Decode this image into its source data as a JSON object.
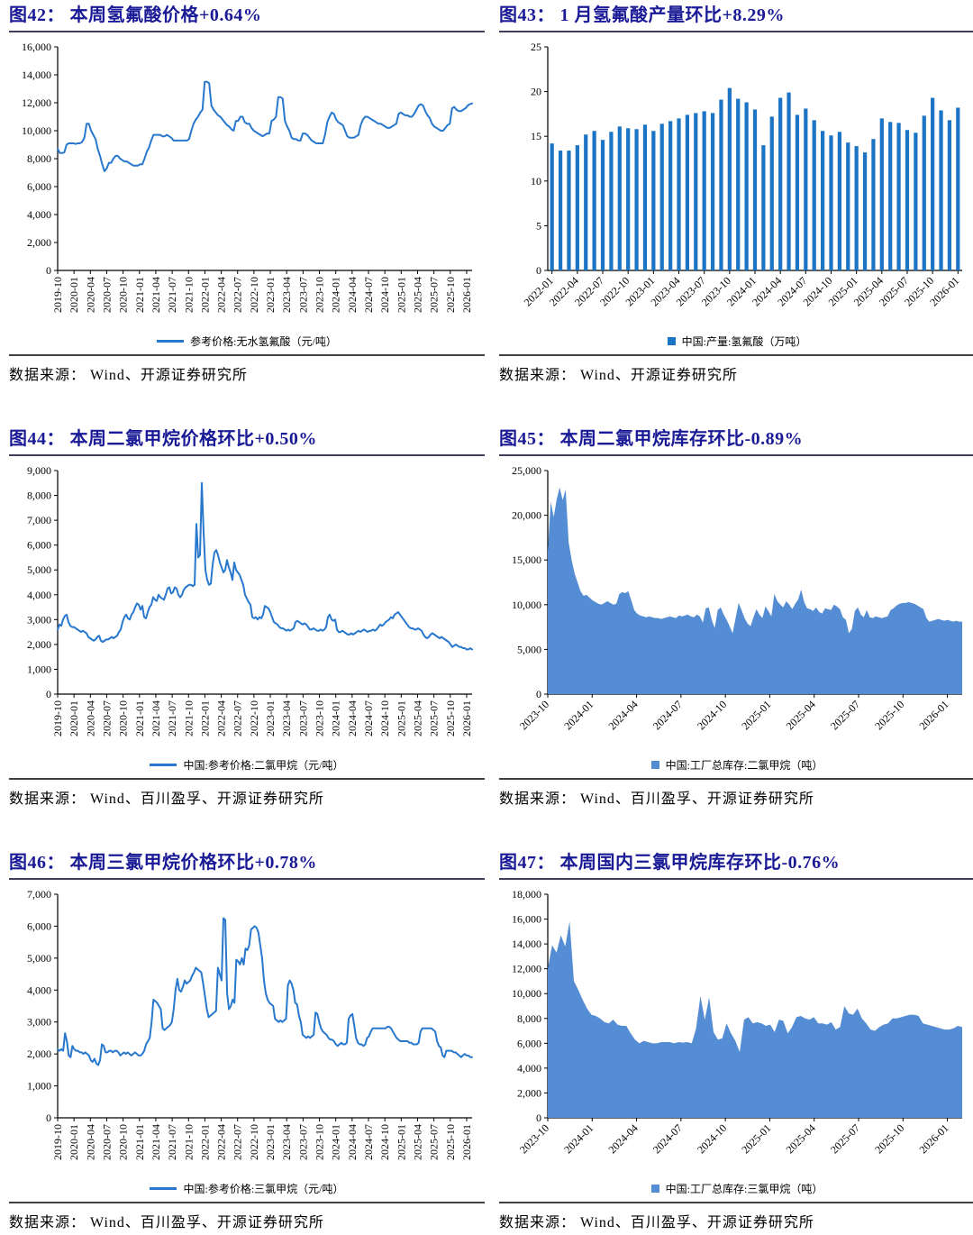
{
  "page": {
    "background": "#ffffff"
  },
  "chart_data": [
    {
      "id": "fig42",
      "title": "图42：  本周氢氟酸价格+0.64%",
      "legend": "参考价格:无水氢氟酸（元/吨）",
      "legend_marker": "line",
      "source": "数据来源：  Wind、开源证券研究所",
      "type": "line",
      "color": "#2878CE",
      "ylabel": "元/吨",
      "ylim": [
        0,
        16000
      ],
      "ytick_step": 2000,
      "ytick_format": "comma",
      "x_start": "2019-10",
      "x_end": "2026-02",
      "x_label_rotation": 90,
      "x_tick_labels": [
        "2019-10",
        "2020-01",
        "2020-04",
        "2020-07",
        "2020-10",
        "2021-01",
        "2021-04",
        "2021-07",
        "2021-10",
        "2022-01",
        "2022-04",
        "2022-07",
        "2022-10",
        "2023-01",
        "2023-04",
        "2023-07",
        "2023-10",
        "2024-01",
        "2024-04",
        "2024-07",
        "2024-10",
        "2025-01",
        "2025-04",
        "2025-07",
        "2025-10",
        "2026-01"
      ],
      "values": [
        8700,
        8400,
        8400,
        8450,
        9000,
        9100,
        9100,
        9100,
        9050,
        9100,
        9100,
        9200,
        9500,
        10500,
        10500,
        10000,
        9700,
        9400,
        8700,
        8200,
        7600,
        7100,
        7300,
        7700,
        7700,
        8000,
        8200,
        8200,
        8000,
        7900,
        7800,
        7800,
        7700,
        7600,
        7500,
        7500,
        7500,
        7600,
        7600,
        8000,
        8500,
        8800,
        9300,
        9700,
        9700,
        9700,
        9700,
        9600,
        9600,
        9700,
        9600,
        9500,
        9300,
        9300,
        9300,
        9300,
        9300,
        9300,
        9300,
        9400,
        10000,
        10500,
        10800,
        11000,
        11300,
        11500,
        13500,
        13500,
        13400,
        11800,
        11500,
        11300,
        11100,
        11000,
        10800,
        10600,
        10400,
        10300,
        10100,
        10000,
        10700,
        10700,
        11000,
        11000,
        10600,
        10500,
        10500,
        10200,
        10000,
        9900,
        9800,
        9700,
        9600,
        9700,
        9800,
        9800,
        10700,
        10800,
        11000,
        12400,
        12400,
        12300,
        10700,
        10300,
        10000,
        9500,
        9400,
        9400,
        9300,
        9300,
        9800,
        9800,
        9700,
        9500,
        9300,
        9200,
        9100,
        9100,
        9100,
        9100,
        9700,
        10600,
        11000,
        11300,
        11200,
        10800,
        10600,
        10500,
        10400,
        10000,
        9600,
        9500,
        9500,
        9500,
        9600,
        9700,
        10400,
        10800,
        11000,
        11000,
        10900,
        10800,
        10700,
        10600,
        10500,
        10500,
        10400,
        10300,
        10200,
        10200,
        10300,
        10400,
        10500,
        11200,
        11300,
        11200,
        11100,
        11100,
        11000,
        11000,
        11200,
        11500,
        11800,
        11900,
        11800,
        11400,
        11100,
        10900,
        10500,
        10300,
        10200,
        10100,
        10000,
        10000,
        10200,
        10400,
        10500,
        11600,
        11700,
        11500,
        11400,
        11400,
        11500,
        11600,
        11800,
        11900,
        11950
      ]
    },
    {
      "id": "fig43",
      "title": "图43：  1 月氢氟酸产量环比+8.29%",
      "legend": "中国:产量:氢氟酸（万吨）",
      "legend_marker": "square",
      "source": "数据来源：  Wind、开源证券研究所",
      "type": "bar",
      "color": "#1B74C4",
      "ylabel": "万吨",
      "ylim": [
        0,
        25
      ],
      "ytick_step": 5,
      "ytick_format": "plain",
      "x_start": "2022-01",
      "x_end": "2026-01",
      "x_label_rotation": 45,
      "xtick_every": 3,
      "x_tick_labels": [
        "2022-01",
        "2022-04",
        "2022-07",
        "2022-10",
        "2023-01",
        "2023-04",
        "2023-07",
        "2023-10",
        "2024-01",
        "2024-04",
        "2024-07",
        "2024-10",
        "2025-01",
        "2025-04",
        "2025-07",
        "2025-10",
        "2026-01"
      ],
      "values": [
        14.2,
        13.4,
        13.4,
        14.0,
        15.2,
        15.6,
        14.6,
        15.5,
        16.1,
        15.9,
        15.8,
        16.3,
        15.6,
        16.4,
        16.7,
        17.0,
        17.4,
        17.6,
        17.8,
        17.6,
        19.1,
        20.4,
        19.2,
        18.8,
        18.0,
        14.0,
        17.2,
        19.3,
        19.9,
        17.4,
        18.1,
        16.8,
        15.6,
        15.1,
        15.5,
        14.3,
        13.9,
        13.2,
        14.7,
        17.0,
        16.6,
        16.5,
        15.7,
        15.4,
        17.3,
        19.3,
        17.9,
        16.8,
        18.2
      ]
    },
    {
      "id": "fig44",
      "title": "图44：  本周二氯甲烷价格环比+0.50%",
      "legend": "中国:参考价格:二氯甲烷（元/吨）",
      "legend_marker": "line",
      "source": "数据来源：  Wind、百川盈孚、开源证券研究所",
      "type": "line",
      "color": "#2878CE",
      "ylabel": "元/吨",
      "ylim": [
        0,
        9000
      ],
      "ytick_step": 1000,
      "ytick_format": "comma",
      "x_start": "2019-10",
      "x_end": "2026-02",
      "x_label_rotation": 90,
      "x_tick_labels": [
        "2019-10",
        "2020-01",
        "2020-04",
        "2020-07",
        "2020-10",
        "2021-01",
        "2021-04",
        "2021-07",
        "2021-10",
        "2022-01",
        "2022-04",
        "2022-07",
        "2022-10",
        "2023-01",
        "2023-04",
        "2023-07",
        "2023-10",
        "2024-01",
        "2024-04",
        "2024-07",
        "2024-10",
        "2025-01",
        "2025-04",
        "2025-07",
        "2025-10",
        "2026-01"
      ],
      "values": [
        2600,
        2800,
        2750,
        3000,
        3150,
        3200,
        2900,
        2750,
        2700,
        2700,
        2650,
        2600,
        2550,
        2500,
        2550,
        2500,
        2450,
        2300,
        2250,
        2200,
        2150,
        2200,
        2300,
        2350,
        2150,
        2100,
        2150,
        2200,
        2200,
        2250,
        2300,
        2250,
        2300,
        2350,
        2500,
        2600,
        2900,
        3100,
        3200,
        3050,
        3000,
        3200,
        3300,
        3500,
        3650,
        3600,
        3400,
        3550,
        3100,
        3050,
        3300,
        3500,
        3600,
        3900,
        3800,
        3750,
        4000,
        3900,
        3850,
        3800,
        4000,
        4250,
        4300,
        4050,
        4100,
        4300,
        4250,
        4000,
        3900,
        4000,
        4200,
        4300,
        4350,
        4400,
        4400,
        4350,
        4400,
        6850,
        5500,
        5600,
        8500,
        6500,
        5000,
        4600,
        4400,
        4450,
        5200,
        5700,
        5800,
        5600,
        5300,
        5100,
        4900,
        5000,
        5400,
        5100,
        4900,
        4600,
        5300,
        5000,
        4900,
        4800,
        4600,
        4400,
        4000,
        3850,
        3700,
        3600,
        3100,
        3050,
        3100,
        3000,
        3100,
        3050,
        3200,
        3550,
        3500,
        3450,
        3300,
        3100,
        2900,
        2850,
        2800,
        2700,
        2650,
        2650,
        2600,
        2550,
        2600,
        2550,
        2600,
        2650,
        2900,
        2950,
        2900,
        2850,
        2800,
        2850,
        2800,
        2700,
        2600,
        2600,
        2650,
        2600,
        2550,
        2550,
        2600,
        2550,
        2600,
        2700,
        3100,
        3200,
        3000,
        2950,
        3000,
        2600,
        2500,
        2500,
        2550,
        2500,
        2450,
        2400,
        2400,
        2450,
        2400,
        2450,
        2500,
        2550,
        2500,
        2550,
        2600,
        2550,
        2500,
        2550,
        2550,
        2600,
        2550,
        2600,
        2700,
        2800,
        2750,
        2800,
        2900,
        2950,
        3000,
        3100,
        3050,
        3200,
        3250,
        3300,
        3200,
        3100,
        3000,
        2900,
        2800,
        2700,
        2650,
        2650,
        2600,
        2600,
        2650,
        2600,
        2550,
        2400,
        2300,
        2250,
        2300,
        2400,
        2450,
        2400,
        2350,
        2300,
        2250,
        2300,
        2250,
        2200,
        2150,
        2100,
        2000,
        1900,
        1950,
        2000,
        1950,
        1900,
        1900,
        1850,
        1850,
        1800,
        1800,
        1850,
        1800
      ]
    },
    {
      "id": "fig45",
      "title": "图45：  本周二氯甲烷库存环比-0.89%",
      "legend": "中国:工厂总库存:二氯甲烷（吨）",
      "legend_marker": "square",
      "source": "数据来源：  Wind、百川盈孚、开源证券研究所",
      "type": "area",
      "color": "#548DD4",
      "ylabel": "吨",
      "ylim": [
        0,
        25000
      ],
      "ytick_step": 5000,
      "ytick_format": "comma",
      "x_start": "2023-10",
      "x_end": "2026-02",
      "x_label_rotation": 45,
      "x_tick_labels": [
        "2023-10",
        "2024-01",
        "2024-04",
        "2024-07",
        "2024-10",
        "2025-01",
        "2025-04",
        "2025-07",
        "2025-10",
        "2026-01"
      ],
      "values": [
        16000,
        21500,
        19800,
        21800,
        23100,
        21700,
        22900,
        17000,
        15000,
        13500,
        12500,
        11500,
        11000,
        11100,
        10800,
        10500,
        10300,
        10100,
        10000,
        10200,
        10400,
        10200,
        10000,
        10100,
        11200,
        11400,
        11300,
        11500,
        10500,
        9400,
        9000,
        8800,
        8700,
        8600,
        8700,
        8600,
        8500,
        8500,
        8400,
        8500,
        8600,
        8700,
        8600,
        8500,
        8800,
        8700,
        8800,
        8900,
        8700,
        8600,
        8900,
        8700,
        8000,
        9600,
        9700,
        8300,
        7400,
        9400,
        9700,
        8900,
        8300,
        7600,
        6800,
        8500,
        10200,
        9400,
        8500,
        7900,
        7600,
        8600,
        9500,
        8900,
        8500,
        9800,
        9300,
        8700,
        11200,
        10400,
        10000,
        9700,
        10400,
        10000,
        9500,
        10100,
        10600,
        11700,
        10300,
        9600,
        9500,
        9300,
        9700,
        9200,
        9000,
        9600,
        9500,
        9400,
        10000,
        9800,
        9500,
        8600,
        8300,
        6800,
        7300,
        9300,
        9700,
        8900,
        8600,
        9400,
        8600,
        8500,
        8700,
        8600,
        8500,
        8600,
        8700,
        9400,
        9600,
        9900,
        10100,
        10200,
        10200,
        10300,
        10200,
        10100,
        9900,
        9700,
        9500,
        8500,
        8100,
        8200,
        8300,
        8400,
        8300,
        8200,
        8300,
        8200,
        8100,
        8200,
        8100,
        8100
      ]
    },
    {
      "id": "fig46",
      "title": "图46：  本周三氯甲烷价格环比+0.78%",
      "legend": "中国:参考价格:三氯甲烷（元/吨）",
      "legend_marker": "line",
      "source": "数据来源：  Wind、百川盈孚、开源证券研究所",
      "type": "line",
      "color": "#2878CE",
      "ylabel": "元/吨",
      "ylim": [
        0,
        7000
      ],
      "ytick_step": 1000,
      "ytick_format": "comma",
      "x_start": "2019-10",
      "x_end": "2026-02",
      "x_label_rotation": 90,
      "x_tick_labels": [
        "2019-10",
        "2020-01",
        "2020-04",
        "2020-07",
        "2020-10",
        "2021-01",
        "2021-04",
        "2021-07",
        "2021-10",
        "2022-01",
        "2022-04",
        "2022-07",
        "2022-10",
        "2023-01",
        "2023-04",
        "2023-07",
        "2023-10",
        "2024-01",
        "2024-04",
        "2024-07",
        "2024-10",
        "2025-01",
        "2025-04",
        "2025-07",
        "2025-10",
        "2026-01"
      ],
      "values": [
        2150,
        2100,
        2150,
        2100,
        2650,
        2400,
        1950,
        1900,
        2250,
        2150,
        2100,
        2100,
        2050,
        2050,
        2000,
        2050,
        2000,
        1950,
        1800,
        1750,
        1850,
        1700,
        1650,
        1800,
        2300,
        2250,
        2050,
        2050,
        2100,
        2100,
        2050,
        2100,
        2100,
        2050,
        1950,
        2000,
        2050,
        2000,
        2050,
        2000,
        1950,
        2000,
        2050,
        2000,
        1950,
        1950,
        2000,
        2100,
        2300,
        2400,
        2500,
        3000,
        3700,
        3650,
        3600,
        3500,
        3400,
        2800,
        2750,
        2800,
        2850,
        2900,
        3000,
        3400,
        4000,
        4350,
        4000,
        3950,
        4100,
        4300,
        4200,
        4250,
        4300,
        4450,
        4550,
        4700,
        4650,
        4600,
        4550,
        4200,
        3800,
        3400,
        3150,
        3200,
        3250,
        3300,
        3350,
        4700,
        4500,
        4300,
        6250,
        6200,
        3900,
        3400,
        3500,
        3700,
        3600,
        4950,
        4900,
        4800,
        5000,
        4800,
        5300,
        5250,
        5400,
        5900,
        5950,
        6000,
        5950,
        5800,
        5400,
        5000,
        4300,
        3900,
        3700,
        3600,
        3550,
        3500,
        3100,
        3050,
        3000,
        3050,
        3000,
        3050,
        3100,
        4150,
        4300,
        4200,
        4000,
        3600,
        3550,
        3200,
        3000,
        2600,
        2550,
        2500,
        2550,
        2500,
        2550,
        2600,
        3300,
        3250,
        3000,
        2800,
        2700,
        2650,
        2600,
        2500,
        2450,
        2450,
        2400,
        2300,
        2250,
        2300,
        2350,
        2300,
        2300,
        2350,
        3100,
        3200,
        3250,
        2900,
        2500,
        2350,
        2300,
        2300,
        2250,
        2300,
        2500,
        2550,
        2700,
        2800,
        2800,
        2800,
        2800,
        2800,
        2800,
        2800,
        2800,
        2850,
        2850,
        2800,
        2700,
        2600,
        2500,
        2450,
        2400,
        2400,
        2400,
        2400,
        2400,
        2350,
        2350,
        2300,
        2300,
        2300,
        2350,
        2700,
        2800,
        2800,
        2800,
        2800,
        2800,
        2800,
        2750,
        2700,
        2400,
        2250,
        2200,
        1950,
        1900,
        2100,
        2100,
        2100,
        2100,
        2050,
        2050,
        2000,
        1950,
        1900,
        1950,
        2000,
        1950,
        1950,
        1900,
        1900
      ]
    },
    {
      "id": "fig47",
      "title": "图47：  本周国内三氯甲烷库存环比-0.76%",
      "legend": "中国:工厂总库存:三氯甲烷（吨）",
      "legend_marker": "square",
      "source": "数据来源：  Wind、百川盈孚、开源证券研究所",
      "type": "area",
      "color": "#548DD4",
      "ylabel": "吨",
      "ylim": [
        0,
        18000
      ],
      "ytick_step": 2000,
      "ytick_format": "comma",
      "x_start": "2023-10",
      "x_end": "2026-02",
      "x_label_rotation": 45,
      "x_tick_labels": [
        "2023-10",
        "2024-01",
        "2024-04",
        "2024-07",
        "2024-10",
        "2025-01",
        "2025-04",
        "2025-07",
        "2025-10",
        "2026-01"
      ],
      "values": [
        12000,
        13900,
        13300,
        14700,
        13800,
        15800,
        11000,
        10300,
        9500,
        8800,
        8300,
        8200,
        8000,
        7700,
        7600,
        7900,
        7500,
        7400,
        7400,
        6800,
        6300,
        6000,
        6200,
        6100,
        6000,
        6000,
        6100,
        6100,
        6100,
        6000,
        6100,
        6050,
        6100,
        6000,
        7200,
        9800,
        7900,
        9700,
        6900,
        6300,
        6400,
        7600,
        6800,
        6200,
        5300,
        7900,
        8100,
        7600,
        7700,
        7600,
        7400,
        7500,
        6900,
        7900,
        7800,
        6800,
        7300,
        8100,
        8200,
        8000,
        7900,
        8100,
        7600,
        7600,
        7500,
        7700,
        7100,
        7300,
        9000,
        8400,
        8300,
        8800,
        8000,
        7600,
        7100,
        7000,
        7300,
        7500,
        7600,
        8000,
        8000,
        8100,
        8200,
        8300,
        8300,
        8200,
        7600,
        7500,
        7400,
        7300,
        7200,
        7100,
        7100,
        7200,
        7400,
        7300
      ]
    }
  ]
}
